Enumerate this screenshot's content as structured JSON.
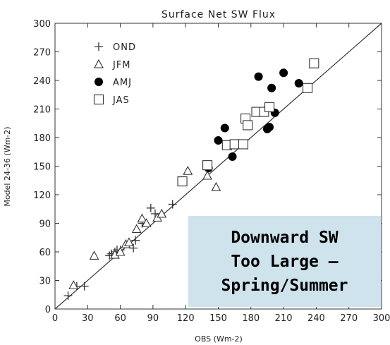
{
  "chart_data": {
    "type": "scatter",
    "title": "Surface Net SW Flux",
    "xlabel": "OBS (Wm-2)",
    "ylabel": "Model 24-36 (Wm-2)",
    "xlim": [
      0,
      300
    ],
    "ylim": [
      0,
      300
    ],
    "xticks": [
      "0",
      "30",
      "60",
      "90",
      "120",
      "150",
      "180",
      "210",
      "240",
      "270",
      "300"
    ],
    "yticks": [
      "0",
      "30",
      "60",
      "90",
      "120",
      "150",
      "180",
      "210",
      "240",
      "270",
      "300"
    ],
    "reference_line": "1:1 diagonal",
    "legend_position": "top-left",
    "series": [
      {
        "name": "OND",
        "marker": "plus",
        "points": [
          [
            12,
            14
          ],
          [
            20,
            24
          ],
          [
            27,
            24
          ],
          [
            50,
            56
          ],
          [
            52,
            58
          ],
          [
            55,
            60
          ],
          [
            57,
            62
          ],
          [
            60,
            62
          ],
          [
            72,
            64
          ],
          [
            74,
            72
          ],
          [
            80,
            90
          ],
          [
            88,
            106
          ],
          [
            92,
            100
          ],
          [
            108,
            110
          ]
        ]
      },
      {
        "name": "JFM",
        "marker": "triangle",
        "points": [
          [
            17,
            25
          ],
          [
            36,
            56
          ],
          [
            55,
            57
          ],
          [
            60,
            60
          ],
          [
            65,
            68
          ],
          [
            68,
            70
          ],
          [
            75,
            84
          ],
          [
            80,
            95
          ],
          [
            84,
            90
          ],
          [
            94,
            96
          ],
          [
            98,
            100
          ],
          [
            122,
            145
          ],
          [
            140,
            140
          ],
          [
            148,
            128
          ]
        ]
      },
      {
        "name": "AMJ",
        "marker": "filled-circle",
        "points": [
          [
            141,
            148
          ],
          [
            150,
            177
          ],
          [
            156,
            190
          ],
          [
            163,
            160
          ],
          [
            187,
            244
          ],
          [
            193,
            208
          ],
          [
            195,
            189
          ],
          [
            197,
            191
          ],
          [
            199,
            232
          ],
          [
            202,
            206
          ],
          [
            210,
            248
          ],
          [
            224,
            237
          ]
        ]
      },
      {
        "name": "JAS",
        "marker": "open-square",
        "points": [
          [
            117,
            134
          ],
          [
            140,
            151
          ],
          [
            158,
            172
          ],
          [
            165,
            173
          ],
          [
            173,
            173
          ],
          [
            175,
            200
          ],
          [
            177,
            193
          ],
          [
            185,
            207
          ],
          [
            192,
            207
          ],
          [
            197,
            212
          ],
          [
            232,
            232
          ],
          [
            238,
            258
          ]
        ]
      }
    ]
  },
  "callout": {
    "line1": "Downward SW",
    "line2": "Too Large –",
    "line3": "Spring/Summer"
  }
}
